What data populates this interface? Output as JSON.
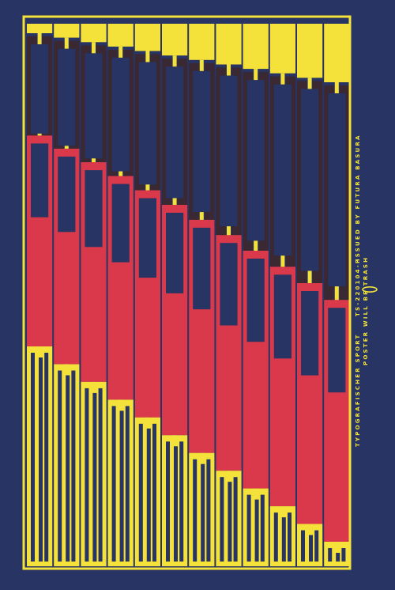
{
  "poster": {
    "colors": {
      "background": "#283463",
      "yellow": "#f4e23a",
      "red": "#d9394a",
      "maroon": "#3a2832",
      "navy": "#283463"
    },
    "text_lines": [
      "TYPOGRAFISCHER SPORT",
      "TS-220104-P",
      "ISSUED BY FUTURA BASURA",
      "POSTER WILL BE TRASH"
    ],
    "logo": "ellipse-logo"
  }
}
